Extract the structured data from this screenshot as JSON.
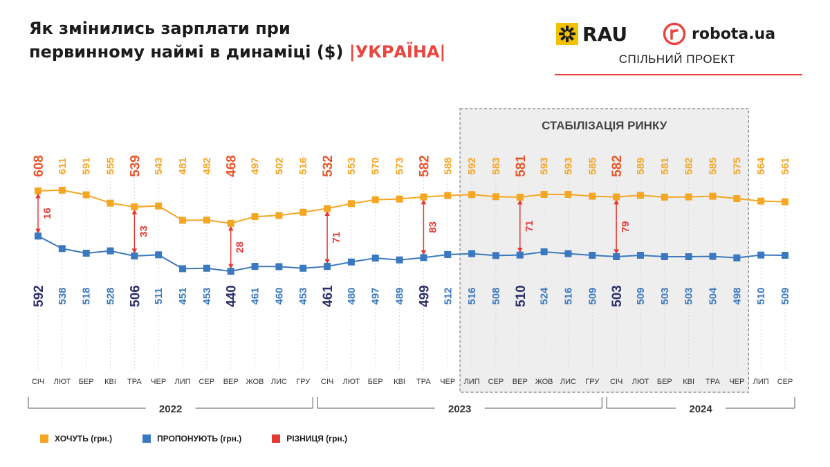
{
  "header": {
    "title_line1": "Як змінились зарплати при",
    "title_line2": "первинному наймі в динаміці ($)",
    "title_sep_left": "|",
    "title_region": "УКРАЇНА",
    "title_sep_right": "|"
  },
  "logos": {
    "rau": "RAU",
    "robota": "robota.ua",
    "partner_label": "СПІЛЬНИЙ ПРОЕКТ"
  },
  "colors": {
    "want": "#f5a623",
    "want_label": "#f5a623",
    "want_highlight": "#e8562a",
    "offer": "#3a78bf",
    "offer_highlight": "#2b2e6b",
    "diff": "#e53935",
    "text": "#1b1b1b",
    "grid": "#d8d8d8",
    "shade": "#eeeeee"
  },
  "chart_data": {
    "type": "line",
    "title": "Як змінились зарплати при первинному наймі в динаміці ($)",
    "categories": [
      "СІЧ",
      "ЛЮТ",
      "БЕР",
      "КВІ",
      "ТРА",
      "ЧЕР",
      "ЛИП",
      "СЕР",
      "ВЕР",
      "ЖОВ",
      "ЛИС",
      "ГРУ",
      "СІЧ",
      "ЛЮТ",
      "БЕР",
      "КВІ",
      "ТРА",
      "ЧЕР",
      "ЛИП",
      "СЕР",
      "ВЕР",
      "ЖОВ",
      "ЛИС",
      "ГРУ",
      "СІЧ",
      "ЛЮТ",
      "БЕР",
      "КВІ",
      "ТРА",
      "ЧЕР",
      "ЛИП",
      "СЕР"
    ],
    "series": [
      {
        "name": "ХОЧУТЬ (грн.)",
        "values": [
          608,
          611,
          591,
          555,
          539,
          543,
          481,
          482,
          468,
          497,
          502,
          516,
          532,
          553,
          570,
          573,
          582,
          588,
          592,
          583,
          581,
          593,
          593,
          585,
          582,
          589,
          581,
          582,
          585,
          575,
          564,
          561
        ]
      },
      {
        "name": "ПРОПОНУЮТЬ (грн.)",
        "values": [
          592,
          538,
          518,
          528,
          506,
          511,
          451,
          453,
          440,
          461,
          460,
          453,
          461,
          480,
          497,
          489,
          499,
          512,
          516,
          508,
          510,
          524,
          516,
          509,
          503,
          509,
          503,
          503,
          504,
          498,
          510,
          509
        ]
      }
    ],
    "differences": [
      {
        "index": 0,
        "value": 16
      },
      {
        "index": 4,
        "value": 33
      },
      {
        "index": 8,
        "value": 28
      },
      {
        "index": 12,
        "value": 71
      },
      {
        "index": 16,
        "value": 83
      },
      {
        "index": 20,
        "value": 71
      },
      {
        "index": 24,
        "value": 79
      }
    ],
    "highlight_indices": [
      0,
      4,
      8,
      12,
      16,
      20,
      24
    ],
    "years": [
      {
        "label": "2022",
        "from": 0,
        "to": 11
      },
      {
        "label": "2023",
        "from": 12,
        "to": 23
      },
      {
        "label": "2024",
        "from": 24,
        "to": 31
      }
    ],
    "highlight_region": {
      "label": "СТАБІЛІЗАЦІЯ РИНКУ",
      "from": 18,
      "to": 29
    },
    "legend": [
      {
        "label": "ХОЧУТЬ (грн.)",
        "color": "#f5a623"
      },
      {
        "label": "ПРОПОНУЮТЬ (грн.)",
        "color": "#3a78bf"
      },
      {
        "label": "РІЗНИЦЯ (грн.)",
        "color": "#e53935"
      }
    ]
  }
}
